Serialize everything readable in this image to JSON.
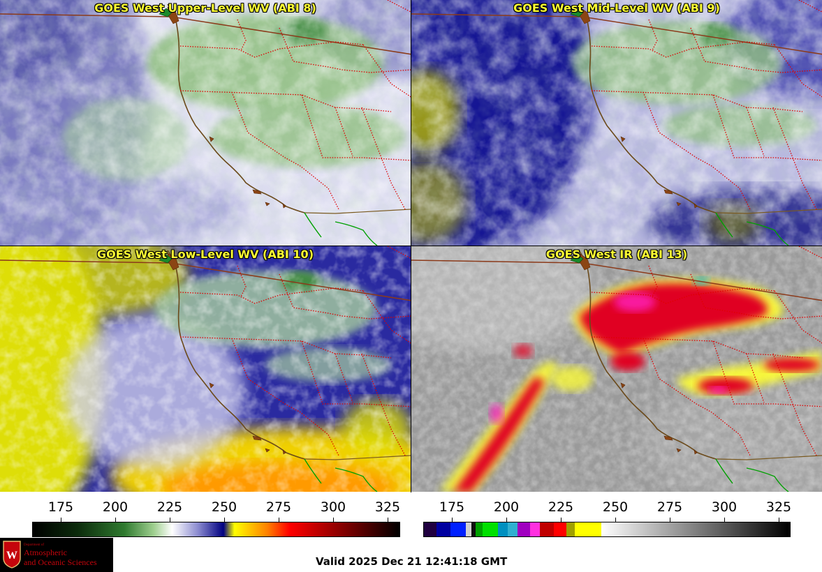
{
  "panels": {
    "upper": {
      "title": "GOES West Upper-Level WV (ABI 8)"
    },
    "mid": {
      "title": "GOES West Mid-Level WV (ABI 9)"
    },
    "low": {
      "title": "GOES West Low-Level WV (ABI 10)"
    },
    "ir": {
      "title": "GOES West IR (ABI 13)"
    }
  },
  "wv_scale": {
    "labels": [
      "175",
      "200",
      "225",
      "250",
      "275",
      "300",
      "325"
    ]
  },
  "ir_scale": {
    "labels": [
      "175",
      "200",
      "225",
      "250",
      "275",
      "300",
      "325"
    ]
  },
  "logo": {
    "dept": "Department of",
    "line1": "Atmospheric",
    "line2": "and Oceanic Sciences"
  },
  "valid_time": "Valid 2025 Dec 21 12:41:18 GMT",
  "colors": {
    "coastline": "#8b5a2b",
    "state_border": "#e00000",
    "intl_border": "#8b3a1a",
    "mexico_border": "#00a000",
    "title": "#ffff33"
  }
}
